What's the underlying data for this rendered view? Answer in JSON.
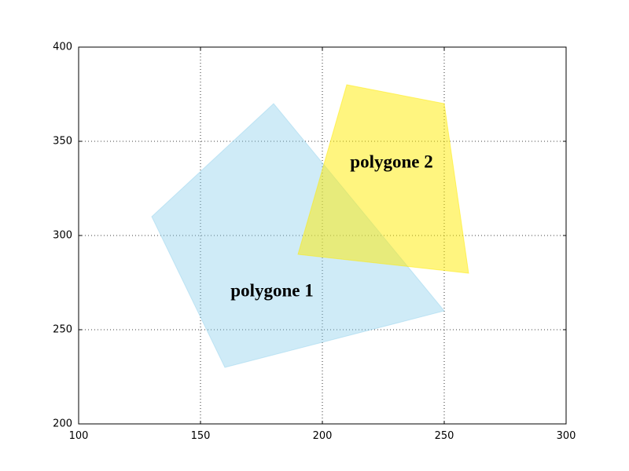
{
  "chart_data": {
    "type": "polygon",
    "series": [
      {
        "name": "polygone 1",
        "color": "#87ceeb",
        "alpha": 0.4,
        "x": [
          130,
          180,
          250,
          160
        ],
        "y": [
          310,
          370,
          260,
          230
        ]
      },
      {
        "name": "polygone 2",
        "color": "#ffec00",
        "alpha": 0.5,
        "x": [
          190,
          210,
          250,
          260
        ],
        "y": [
          290,
          380,
          370,
          280
        ]
      }
    ],
    "xlim": [
      100,
      300
    ],
    "xticks": [
      100,
      150,
      200,
      250,
      300
    ],
    "ylim": [
      200,
      400
    ],
    "yticks": [
      200,
      250,
      300,
      350,
      400
    ],
    "grid": true
  }
}
